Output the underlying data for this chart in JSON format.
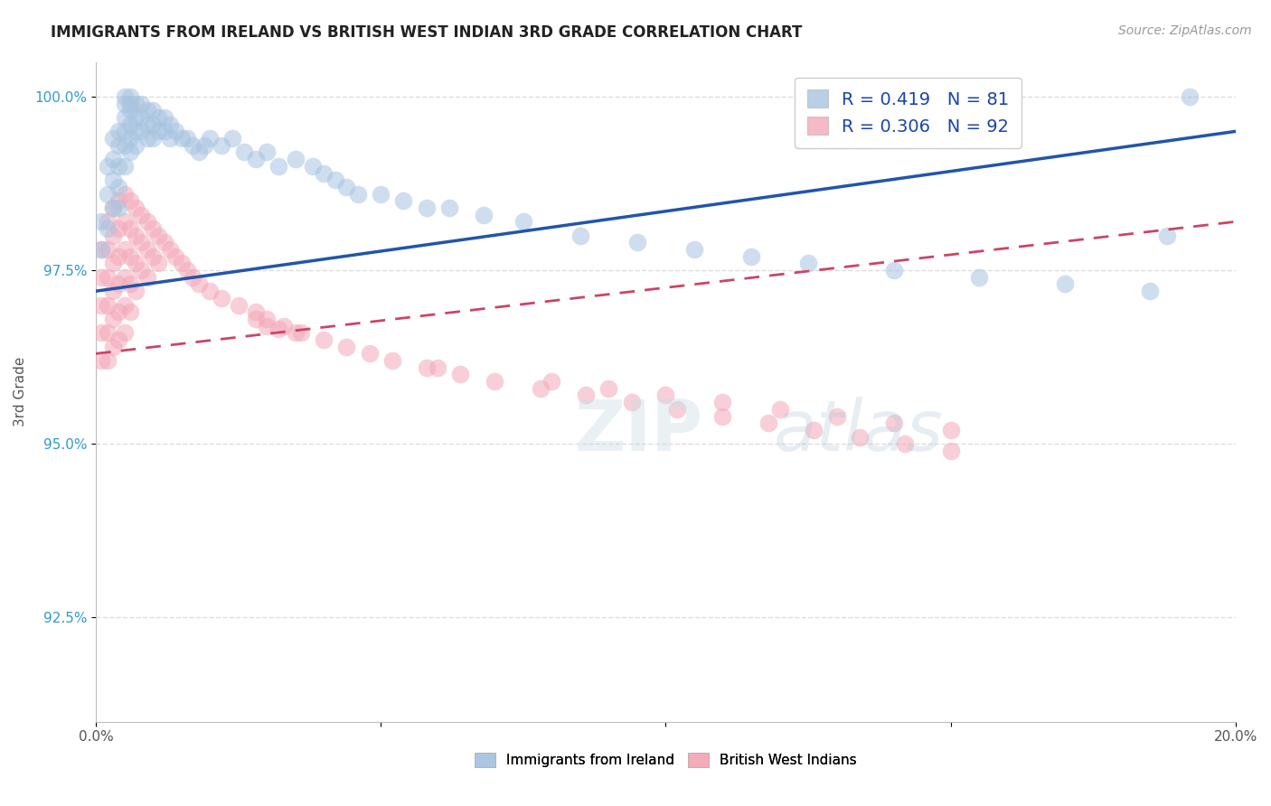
{
  "title": "IMMIGRANTS FROM IRELAND VS BRITISH WEST INDIAN 3RD GRADE CORRELATION CHART",
  "source": "Source: ZipAtlas.com",
  "ylabel": "3rd Grade",
  "xlim": [
    0.0,
    0.2
  ],
  "ylim": [
    0.91,
    1.005
  ],
  "yticks": [
    0.925,
    0.95,
    0.975,
    1.0
  ],
  "ytick_labels": [
    "92.5%",
    "95.0%",
    "97.5%",
    "100.0%"
  ],
  "xticks": [
    0.0,
    0.05,
    0.1,
    0.15,
    0.2
  ],
  "xtick_labels": [
    "0.0%",
    "",
    "",
    "",
    "20.0%"
  ],
  "ireland_R": 0.419,
  "ireland_N": 81,
  "bwi_R": 0.306,
  "bwi_N": 92,
  "ireland_color": "#a8c4e0",
  "bwi_color": "#f4a8b8",
  "ireland_line_color": "#2255aa",
  "bwi_line_color": "#cc4466",
  "background_color": "#ffffff",
  "grid_color": "#dddddd",
  "ireland_x": [
    0.001,
    0.001,
    0.002,
    0.002,
    0.002,
    0.003,
    0.003,
    0.003,
    0.003,
    0.004,
    0.004,
    0.004,
    0.004,
    0.004,
    0.005,
    0.005,
    0.005,
    0.005,
    0.005,
    0.005,
    0.006,
    0.006,
    0.006,
    0.006,
    0.006,
    0.006,
    0.007,
    0.007,
    0.007,
    0.007,
    0.008,
    0.008,
    0.008,
    0.009,
    0.009,
    0.009,
    0.01,
    0.01,
    0.01,
    0.011,
    0.011,
    0.012,
    0.012,
    0.013,
    0.013,
    0.014,
    0.015,
    0.016,
    0.017,
    0.018,
    0.019,
    0.02,
    0.022,
    0.024,
    0.026,
    0.028,
    0.03,
    0.032,
    0.035,
    0.038,
    0.04,
    0.042,
    0.044,
    0.046,
    0.05,
    0.054,
    0.058,
    0.062,
    0.068,
    0.075,
    0.085,
    0.095,
    0.105,
    0.115,
    0.125,
    0.14,
    0.155,
    0.17,
    0.185,
    0.188,
    0.192
  ],
  "ireland_y": [
    0.982,
    0.978,
    0.99,
    0.986,
    0.981,
    0.994,
    0.991,
    0.988,
    0.984,
    0.995,
    0.993,
    0.99,
    0.987,
    0.984,
    1.0,
    0.999,
    0.997,
    0.995,
    0.993,
    0.99,
    1.0,
    0.999,
    0.998,
    0.996,
    0.994,
    0.992,
    0.999,
    0.997,
    0.995,
    0.993,
    0.999,
    0.997,
    0.995,
    0.998,
    0.996,
    0.994,
    0.998,
    0.996,
    0.994,
    0.997,
    0.995,
    0.997,
    0.995,
    0.996,
    0.994,
    0.995,
    0.994,
    0.994,
    0.993,
    0.992,
    0.993,
    0.994,
    0.993,
    0.994,
    0.992,
    0.991,
    0.992,
    0.99,
    0.991,
    0.99,
    0.989,
    0.988,
    0.987,
    0.986,
    0.986,
    0.985,
    0.984,
    0.984,
    0.983,
    0.982,
    0.98,
    0.979,
    0.978,
    0.977,
    0.976,
    0.975,
    0.974,
    0.973,
    0.972,
    0.98,
    1.0
  ],
  "bwi_x": [
    0.001,
    0.001,
    0.001,
    0.001,
    0.001,
    0.002,
    0.002,
    0.002,
    0.002,
    0.002,
    0.002,
    0.003,
    0.003,
    0.003,
    0.003,
    0.003,
    0.003,
    0.004,
    0.004,
    0.004,
    0.004,
    0.004,
    0.004,
    0.005,
    0.005,
    0.005,
    0.005,
    0.005,
    0.005,
    0.006,
    0.006,
    0.006,
    0.006,
    0.006,
    0.007,
    0.007,
    0.007,
    0.007,
    0.008,
    0.008,
    0.008,
    0.009,
    0.009,
    0.009,
    0.01,
    0.01,
    0.011,
    0.011,
    0.012,
    0.013,
    0.014,
    0.015,
    0.016,
    0.017,
    0.018,
    0.02,
    0.022,
    0.025,
    0.028,
    0.03,
    0.033,
    0.036,
    0.04,
    0.044,
    0.048,
    0.052,
    0.058,
    0.064,
    0.07,
    0.078,
    0.086,
    0.094,
    0.102,
    0.11,
    0.118,
    0.126,
    0.134,
    0.142,
    0.15,
    0.03,
    0.035,
    0.028,
    0.032,
    0.06,
    0.08,
    0.09,
    0.1,
    0.11,
    0.12,
    0.13,
    0.14,
    0.15
  ],
  "bwi_y": [
    0.978,
    0.974,
    0.97,
    0.966,
    0.962,
    0.982,
    0.978,
    0.974,
    0.97,
    0.966,
    0.962,
    0.984,
    0.98,
    0.976,
    0.972,
    0.968,
    0.964,
    0.985,
    0.981,
    0.977,
    0.973,
    0.969,
    0.965,
    0.986,
    0.982,
    0.978,
    0.974,
    0.97,
    0.966,
    0.985,
    0.981,
    0.977,
    0.973,
    0.969,
    0.984,
    0.98,
    0.976,
    0.972,
    0.983,
    0.979,
    0.975,
    0.982,
    0.978,
    0.974,
    0.981,
    0.977,
    0.98,
    0.976,
    0.979,
    0.978,
    0.977,
    0.976,
    0.975,
    0.974,
    0.973,
    0.972,
    0.971,
    0.97,
    0.969,
    0.968,
    0.967,
    0.966,
    0.965,
    0.964,
    0.963,
    0.962,
    0.961,
    0.96,
    0.959,
    0.958,
    0.957,
    0.956,
    0.955,
    0.954,
    0.953,
    0.952,
    0.951,
    0.95,
    0.949,
    0.967,
    0.966,
    0.968,
    0.9665,
    0.961,
    0.959,
    0.958,
    0.957,
    0.956,
    0.955,
    0.954,
    0.953,
    0.952
  ],
  "ireland_line_x": [
    0.0,
    0.2
  ],
  "ireland_line_y": [
    0.972,
    0.995
  ],
  "bwi_line_x": [
    0.0,
    0.2
  ],
  "bwi_line_y": [
    0.963,
    0.982
  ]
}
